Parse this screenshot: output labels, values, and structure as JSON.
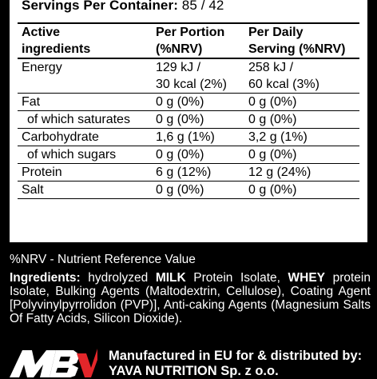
{
  "servings": {
    "label": "Servings Per Container:",
    "value": "85 / 42"
  },
  "table": {
    "headers": [
      [
        "Active",
        "ingredients"
      ],
      [
        "Per Portion",
        "(%NRV)"
      ],
      [
        "Per Daily",
        "Serving (%NRV)"
      ]
    ],
    "rows": [
      {
        "name": "Energy",
        "portion": [
          "129 kJ /",
          "30 kcal (2%)"
        ],
        "daily": [
          "258 kJ /",
          "60 kcal (3%)"
        ]
      },
      {
        "name": "Fat",
        "portion": [
          "0 g (0%)"
        ],
        "daily": [
          "0 g (0%)"
        ]
      },
      {
        "name": "of which saturates",
        "portion": [
          "0 g (0%)"
        ],
        "daily": [
          "0 g (0%)"
        ]
      },
      {
        "name": "Carbohydrate",
        "portion": [
          "1,6 g (1%)"
        ],
        "daily": [
          "3,2 g (1%)"
        ]
      },
      {
        "name": "of which sugars",
        "portion": [
          "0 g (0%)"
        ],
        "daily": [
          "0 g (0%)"
        ]
      },
      {
        "name": "Protein",
        "portion": [
          "6 g (12%)"
        ],
        "daily": [
          "12 g (24%)"
        ]
      },
      {
        "name": "Salt",
        "portion": [
          "0 g (0%)"
        ],
        "daily": [
          "0 g (0%)"
        ]
      }
    ]
  },
  "note": "%NRV - Nutrient Reference Value",
  "ingredients": {
    "label": "Ingredients:",
    "t1": " hydrolyzed ",
    "b1": "MILK",
    "t2": " Protein Isolate, ",
    "b2": "WHEY",
    "t3": " protein Isolate, Bulking Agents (Maltodextrin, Cellulose), Coating Agent [Polyvinylpyrrolidon (PVP)], Anti-caking Agents (Magnesium Salts Of Fatty Acids, Silicon Dioxide)."
  },
  "distributor": {
    "line1": "Manufactured in EU for & distributed by:",
    "line2": "YAVA NUTRITION Sp. z o.o."
  },
  "colors": {
    "background": "#000000",
    "panel": "#ffffff",
    "logo_accent": "#e3262a"
  }
}
